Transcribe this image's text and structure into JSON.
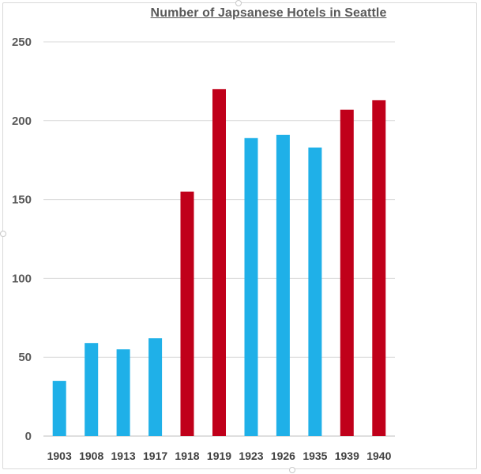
{
  "chart_data": {
    "type": "bar",
    "title": "Number of Japsanese Hotels in Seattle",
    "xlabel": "",
    "ylabel": "",
    "categories": [
      "1903",
      "1908",
      "1913",
      "1917",
      "1918",
      "1919",
      "1923",
      "1926",
      "1935",
      "1939",
      "1940"
    ],
    "values": [
      35,
      59,
      55,
      62,
      155,
      220,
      189,
      191,
      183,
      207,
      213
    ],
    "bar_colors": [
      "#1fb0e8",
      "#1fb0e8",
      "#1fb0e8",
      "#1fb0e8",
      "#c0001a",
      "#c0001a",
      "#1fb0e8",
      "#1fb0e8",
      "#1fb0e8",
      "#c0001a",
      "#c0001a"
    ],
    "ylim": [
      0,
      250
    ],
    "yticks": [
      "0",
      "50",
      "100",
      "150",
      "200",
      "250"
    ],
    "grid": true,
    "legend": "none"
  }
}
